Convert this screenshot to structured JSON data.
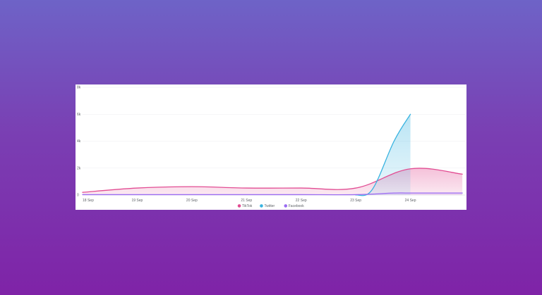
{
  "chart_data": {
    "type": "area",
    "x_categories": [
      "18 Sep",
      "19 Sep",
      "20 Sep",
      "21 Sep",
      "22 Sep",
      "23 Sep",
      "24 Sep"
    ],
    "y_ticks": [
      "0",
      "2k",
      "4k",
      "6k",
      "8k"
    ],
    "ylim": [
      0,
      8000
    ],
    "xlim": [
      18,
      25
    ],
    "grid": true,
    "legend_position": "bottom",
    "series": [
      {
        "name": "TikTok",
        "color": "#e24d93",
        "x": [
          18.0,
          19.0,
          20.0,
          21.0,
          22.0,
          23.0,
          24.0,
          24.95
        ],
        "y": [
          200,
          520,
          620,
          520,
          520,
          520,
          1950,
          1550
        ]
      },
      {
        "name": "Twitter",
        "color": "#38b3e0",
        "x": [
          23.0,
          23.3,
          23.7,
          24.0
        ],
        "y": [
          0,
          400,
          4000,
          6000
        ]
      },
      {
        "name": "Facebook",
        "color": "#9b6cf2",
        "x": [
          18.0,
          19.0,
          20.0,
          21.0,
          22.0,
          23.0,
          23.7,
          24.0,
          24.95
        ],
        "y": [
          30,
          30,
          30,
          30,
          30,
          30,
          150,
          150,
          150
        ]
      }
    ]
  }
}
